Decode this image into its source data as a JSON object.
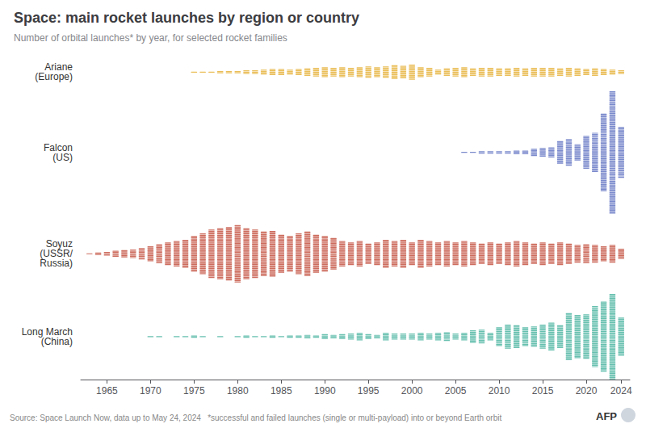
{
  "chart_data": {
    "type": "dotplot",
    "title": "Space: main rocket launches by region or country",
    "subtitle": "Number of orbital launches* by year, for selected rocket families",
    "annotations": [
      "Source: Space Launch Now, data up to May 24, 2024   *successful and failed launches (single or multi-payload) into or beyond Earth orbit",
      "AFP"
    ],
    "x": [
      1963,
      1964,
      1965,
      1966,
      1967,
      1968,
      1969,
      1970,
      1971,
      1972,
      1973,
      1974,
      1975,
      1976,
      1977,
      1978,
      1979,
      1980,
      1981,
      1982,
      1983,
      1984,
      1985,
      1986,
      1987,
      1988,
      1989,
      1990,
      1991,
      1992,
      1993,
      1994,
      1995,
      1996,
      1997,
      1998,
      1999,
      2000,
      2001,
      2002,
      2003,
      2004,
      2005,
      2006,
      2007,
      2008,
      2009,
      2010,
      2011,
      2012,
      2013,
      2014,
      2015,
      2016,
      2017,
      2018,
      2019,
      2020,
      2021,
      2022,
      2023,
      2024
    ],
    "series": [
      {
        "name": "Ariane\n(Europe)",
        "color": "#e8b84b",
        "values": [
          null,
          null,
          null,
          null,
          null,
          null,
          null,
          null,
          null,
          null,
          null,
          null,
          1,
          1,
          1,
          2,
          2,
          2,
          3,
          3,
          4,
          5,
          5,
          4,
          5,
          6,
          7,
          8,
          7,
          8,
          7,
          8,
          9,
          8,
          9,
          11,
          10,
          12,
          8,
          7,
          4,
          6,
          7,
          8,
          6,
          7,
          7,
          6,
          6,
          7,
          6,
          7,
          7,
          7,
          6,
          7,
          6,
          5,
          6,
          5,
          4,
          3
        ]
      },
      {
        "name": "Falcon\n(US)",
        "color": "#7080c8",
        "values": [
          null,
          null,
          null,
          null,
          null,
          null,
          null,
          null,
          null,
          null,
          null,
          null,
          null,
          null,
          null,
          null,
          null,
          null,
          null,
          null,
          null,
          null,
          null,
          null,
          null,
          null,
          null,
          null,
          null,
          null,
          null,
          null,
          null,
          null,
          null,
          null,
          null,
          null,
          null,
          null,
          null,
          null,
          null,
          1,
          1,
          2,
          2,
          2,
          2,
          3,
          3,
          6,
          7,
          8,
          18,
          21,
          13,
          26,
          31,
          61,
          96,
          40
        ]
      },
      {
        "name": "Soyuz\n(USSR/\nRussia)",
        "color": "#c96050",
        "values": [
          1,
          2,
          3,
          5,
          6,
          7,
          9,
          12,
          15,
          18,
          20,
          22,
          28,
          32,
          38,
          40,
          42,
          45,
          40,
          38,
          35,
          36,
          30,
          28,
          32,
          35,
          30,
          28,
          25,
          20,
          18,
          20,
          16,
          18,
          22,
          20,
          22,
          18,
          22,
          20,
          18,
          20,
          18,
          20,
          18,
          16,
          18,
          16,
          18,
          20,
          18,
          16,
          18,
          16,
          18,
          16,
          14,
          15,
          14,
          12,
          14,
          8
        ]
      },
      {
        "name": "Long March\n(China)",
        "color": "#5abba8",
        "values": [
          null,
          null,
          null,
          null,
          null,
          null,
          null,
          1,
          1,
          null,
          1,
          1,
          2,
          1,
          null,
          1,
          null,
          1,
          2,
          1,
          1,
          2,
          1,
          2,
          2,
          3,
          2,
          4,
          3,
          4,
          5,
          6,
          4,
          3,
          6,
          5,
          5,
          5,
          6,
          5,
          6,
          7,
          5,
          6,
          10,
          11,
          6,
          15,
          19,
          18,
          15,
          16,
          19,
          22,
          18,
          37,
          34,
          35,
          48,
          55,
          67,
          30
        ]
      }
    ],
    "xlim": [
      1962,
      2025
    ],
    "xticks": [
      1965,
      1970,
      1975,
      1980,
      1985,
      1990,
      1995,
      2000,
      2005,
      2010,
      2015,
      2020,
      2024
    ],
    "tick_labels": "x",
    "grid": false
  }
}
